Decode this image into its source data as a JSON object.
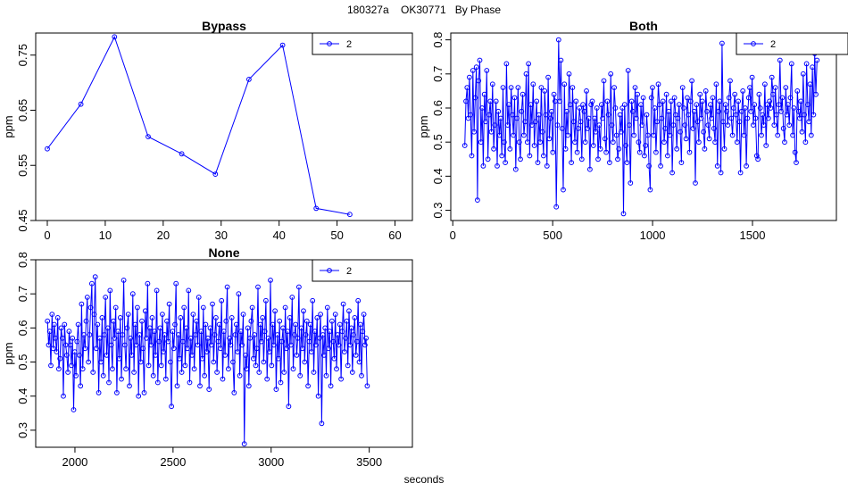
{
  "header": {
    "title": "180327a    OK30771   By Phase",
    "xlabel": "seconds"
  },
  "colors": {
    "series": "#0000ff",
    "axis": "#000000"
  },
  "chart_data": [
    {
      "type": "line",
      "title": "Bypass",
      "ylabel": "ppm",
      "xlim": [
        -2,
        63
      ],
      "ylim": [
        0.45,
        0.79
      ],
      "xticks": [
        "0",
        "10",
        "20",
        "30",
        "40",
        "50",
        "60"
      ],
      "yticks": [
        "0.45",
        "0.55",
        "0.65",
        "0.75"
      ],
      "legend": "top-right",
      "series": [
        {
          "name": "2",
          "x": [
            0,
            5.8,
            11.6,
            17.4,
            23.2,
            29,
            34.8,
            40.6,
            46.4,
            52.2
          ],
          "y": [
            0.58,
            0.661,
            0.783,
            0.602,
            0.571,
            0.534,
            0.706,
            0.768,
            0.472,
            0.461
          ]
        }
      ]
    },
    {
      "type": "line",
      "title": "Both",
      "ylabel": "ppm",
      "xlim": [
        -10,
        1920
      ],
      "ylim": [
        0.27,
        0.82
      ],
      "xticks": [
        "0",
        "500",
        "1000",
        "1500"
      ],
      "yticks": [
        "0.3",
        "0.4",
        "0.5",
        "0.6",
        "0.7",
        "0.8"
      ],
      "legend": "top-right",
      "series": [
        {
          "name": "2",
          "x_start": 60,
          "x_step": 5.8,
          "y": [
            0.49,
            0.62,
            0.66,
            0.57,
            0.69,
            0.58,
            0.46,
            0.71,
            0.53,
            0.63,
            0.72,
            0.33,
            0.68,
            0.74,
            0.5,
            0.6,
            0.43,
            0.64,
            0.56,
            0.71,
            0.45,
            0.58,
            0.62,
            0.53,
            0.67,
            0.48,
            0.55,
            0.62,
            0.43,
            0.59,
            0.52,
            0.57,
            0.46,
            0.66,
            0.5,
            0.44,
            0.73,
            0.55,
            0.61,
            0.48,
            0.66,
            0.58,
            0.52,
            0.63,
            0.42,
            0.57,
            0.66,
            0.5,
            0.45,
            0.59,
            0.64,
            0.52,
            0.56,
            0.7,
            0.5,
            0.73,
            0.46,
            0.61,
            0.55,
            0.67,
            0.49,
            0.56,
            0.62,
            0.44,
            0.58,
            0.5,
            0.66,
            0.53,
            0.46,
            0.65,
            0.58,
            0.43,
            0.69,
            0.51,
            0.57,
            0.59,
            0.47,
            0.64,
            0.62,
            0.31,
            0.55,
            0.8,
            0.62,
            0.74,
            0.54,
            0.36,
            0.67,
            0.48,
            0.59,
            0.52,
            0.7,
            0.61,
            0.44,
            0.66,
            0.56,
            0.5,
            0.62,
            0.47,
            0.54,
            0.6,
            0.56,
            0.45,
            0.61,
            0.59,
            0.5,
            0.65,
            0.54,
            0.57,
            0.42,
            0.61,
            0.62,
            0.49,
            0.57,
            0.53,
            0.6,
            0.45,
            0.55,
            0.48,
            0.61,
            0.57,
            0.68,
            0.51,
            0.47,
            0.62,
            0.58,
            0.44,
            0.7,
            0.55,
            0.5,
            0.66,
            0.6,
            0.52,
            0.45,
            0.48,
            0.58,
            0.53,
            0.6,
            0.29,
            0.61,
            0.49,
            0.44,
            0.71,
            0.55,
            0.38,
            0.62,
            0.59,
            0.52,
            0.66,
            0.57,
            0.64,
            0.5,
            0.47,
            0.61,
            0.55,
            0.63,
            0.46,
            0.49,
            0.58,
            0.52,
            0.43,
            0.36,
            0.63,
            0.66,
            0.52,
            0.6,
            0.47,
            0.56,
            0.67,
            0.61,
            0.43,
            0.57,
            0.62,
            0.5,
            0.54,
            0.64,
            0.46,
            0.59,
            0.52,
            0.62,
            0.41,
            0.55,
            0.63,
            0.58,
            0.48,
            0.57,
            0.61,
            0.53,
            0.44,
            0.66,
            0.6,
            0.55,
            0.51,
            0.63,
            0.58,
            0.47,
            0.62,
            0.68,
            0.54,
            0.59,
            0.38,
            0.61,
            0.56,
            0.5,
            0.64,
            0.57,
            0.62,
            0.53,
            0.48,
            0.65,
            0.59,
            0.55,
            0.51,
            0.61,
            0.57,
            0.63,
            0.54,
            0.5,
            0.67,
            0.43,
            0.59,
            0.62,
            0.41,
            0.79,
            0.56,
            0.48,
            0.61,
            0.59,
            0.55,
            0.63,
            0.68,
            0.57,
            0.52,
            0.6,
            0.64,
            0.58,
            0.5,
            0.62,
            0.56,
            0.41,
            0.59,
            0.65,
            0.52,
            0.6,
            0.43,
            0.57,
            0.63,
            0.66,
            0.59,
            0.69,
            0.55,
            0.61,
            0.57,
            0.46,
            0.45,
            0.64,
            0.6,
            0.52,
            0.58,
            0.55,
            0.67,
            0.49,
            0.61,
            0.57,
            0.62,
            0.6,
            0.69,
            0.64,
            0.55,
            0.66,
            0.58,
            0.52,
            0.61,
            0.74,
            0.59,
            0.63,
            0.54,
            0.5,
            0.66,
            0.58,
            0.61,
            0.55,
            0.63,
            0.73,
            0.52,
            0.6,
            0.47,
            0.44,
            0.65,
            0.59,
            0.57,
            0.62,
            0.53,
            0.7,
            0.58,
            0.5,
            0.73,
            0.61,
            0.56,
            0.67,
            0.52,
            0.72,
            0.58,
            0.76,
            0.64,
            0.74
          ]
        }
      ]
    },
    {
      "type": "line",
      "title": "None",
      "ylabel": "ppm",
      "xlim": [
        1800,
        3720
      ],
      "ylim": [
        0.25,
        0.8
      ],
      "xticks": [
        "2000",
        "2500",
        "3000",
        "3500"
      ],
      "yticks": [
        "0.3",
        "0.4",
        "0.5",
        "0.6",
        "0.7",
        "0.8"
      ],
      "legend": "top-right",
      "series": [
        {
          "name": "2",
          "x_start": 1860,
          "x_step": 5.8,
          "y": [
            0.62,
            0.55,
            0.59,
            0.49,
            0.64,
            0.54,
            0.61,
            0.57,
            0.53,
            0.63,
            0.48,
            0.51,
            0.6,
            0.57,
            0.4,
            0.61,
            0.55,
            0.52,
            0.47,
            0.59,
            0.55,
            0.49,
            0.57,
            0.36,
            0.53,
            0.46,
            0.56,
            0.61,
            0.52,
            0.43,
            0.67,
            0.48,
            0.58,
            0.54,
            0.62,
            0.69,
            0.5,
            0.58,
            0.66,
            0.73,
            0.47,
            0.64,
            0.75,
            0.54,
            0.61,
            0.41,
            0.57,
            0.5,
            0.63,
            0.46,
            0.58,
            0.69,
            0.52,
            0.6,
            0.44,
            0.71,
            0.55,
            0.48,
            0.62,
            0.57,
            0.66,
            0.41,
            0.59,
            0.51,
            0.63,
            0.45,
            0.58,
            0.74,
            0.55,
            0.48,
            0.6,
            0.64,
            0.43,
            0.57,
            0.52,
            0.7,
            0.47,
            0.61,
            0.55,
            0.66,
            0.4,
            0.58,
            0.5,
            0.62,
            0.54,
            0.41,
            0.65,
            0.57,
            0.73,
            0.49,
            0.6,
            0.55,
            0.63,
            0.46,
            0.59,
            0.52,
            0.71,
            0.44,
            0.56,
            0.6,
            0.49,
            0.64,
            0.53,
            0.58,
            0.45,
            0.62,
            0.56,
            0.67,
            0.5,
            0.37,
            0.59,
            0.54,
            0.61,
            0.73,
            0.43,
            0.58,
            0.51,
            0.63,
            0.47,
            0.56,
            0.66,
            0.49,
            0.6,
            0.54,
            0.71,
            0.44,
            0.57,
            0.52,
            0.64,
            0.48,
            0.58,
            0.62,
            0.55,
            0.69,
            0.43,
            0.59,
            0.51,
            0.66,
            0.46,
            0.61,
            0.53,
            0.57,
            0.42,
            0.6,
            0.55,
            0.67,
            0.5,
            0.58,
            0.63,
            0.47,
            0.56,
            0.61,
            0.54,
            0.68,
            0.45,
            0.59,
            0.52,
            0.62,
            0.72,
            0.48,
            0.57,
            0.55,
            0.63,
            0.5,
            0.41,
            0.58,
            0.61,
            0.53,
            0.7,
            0.46,
            0.59,
            0.55,
            0.64,
            0.26,
            0.52,
            0.48,
            0.6,
            0.43,
            0.57,
            0.62,
            0.66,
            0.51,
            0.58,
            0.49,
            0.54,
            0.72,
            0.47,
            0.61,
            0.56,
            0.63,
            0.5,
            0.59,
            0.68,
            0.45,
            0.57,
            0.53,
            0.74,
            0.49,
            0.61,
            0.55,
            0.65,
            0.42,
            0.58,
            0.51,
            0.62,
            0.44,
            0.56,
            0.6,
            0.47,
            0.66,
            0.54,
            0.59,
            0.37,
            0.63,
            0.55,
            0.69,
            0.48,
            0.58,
            0.61,
            0.52,
            0.57,
            0.72,
            0.46,
            0.6,
            0.54,
            0.65,
            0.5,
            0.58,
            0.62,
            0.43,
            0.56,
            0.61,
            0.53,
            0.68,
            0.47,
            0.59,
            0.55,
            0.63,
            0.4,
            0.57,
            0.64,
            0.32,
            0.58,
            0.52,
            0.6,
            0.46,
            0.66,
            0.54,
            0.59,
            0.43,
            0.62,
            0.56,
            0.51,
            0.64,
            0.48,
            0.58,
            0.55,
            0.61,
            0.45,
            0.59,
            0.67,
            0.53,
            0.57,
            0.62,
            0.49,
            0.65,
            0.55,
            0.6,
            0.47,
            0.58,
            0.63,
            0.52,
            0.56,
            0.68,
            0.5,
            0.61,
            0.46,
            0.59,
            0.64,
            0.55,
            0.57,
            0.43
          ]
        }
      ]
    }
  ]
}
